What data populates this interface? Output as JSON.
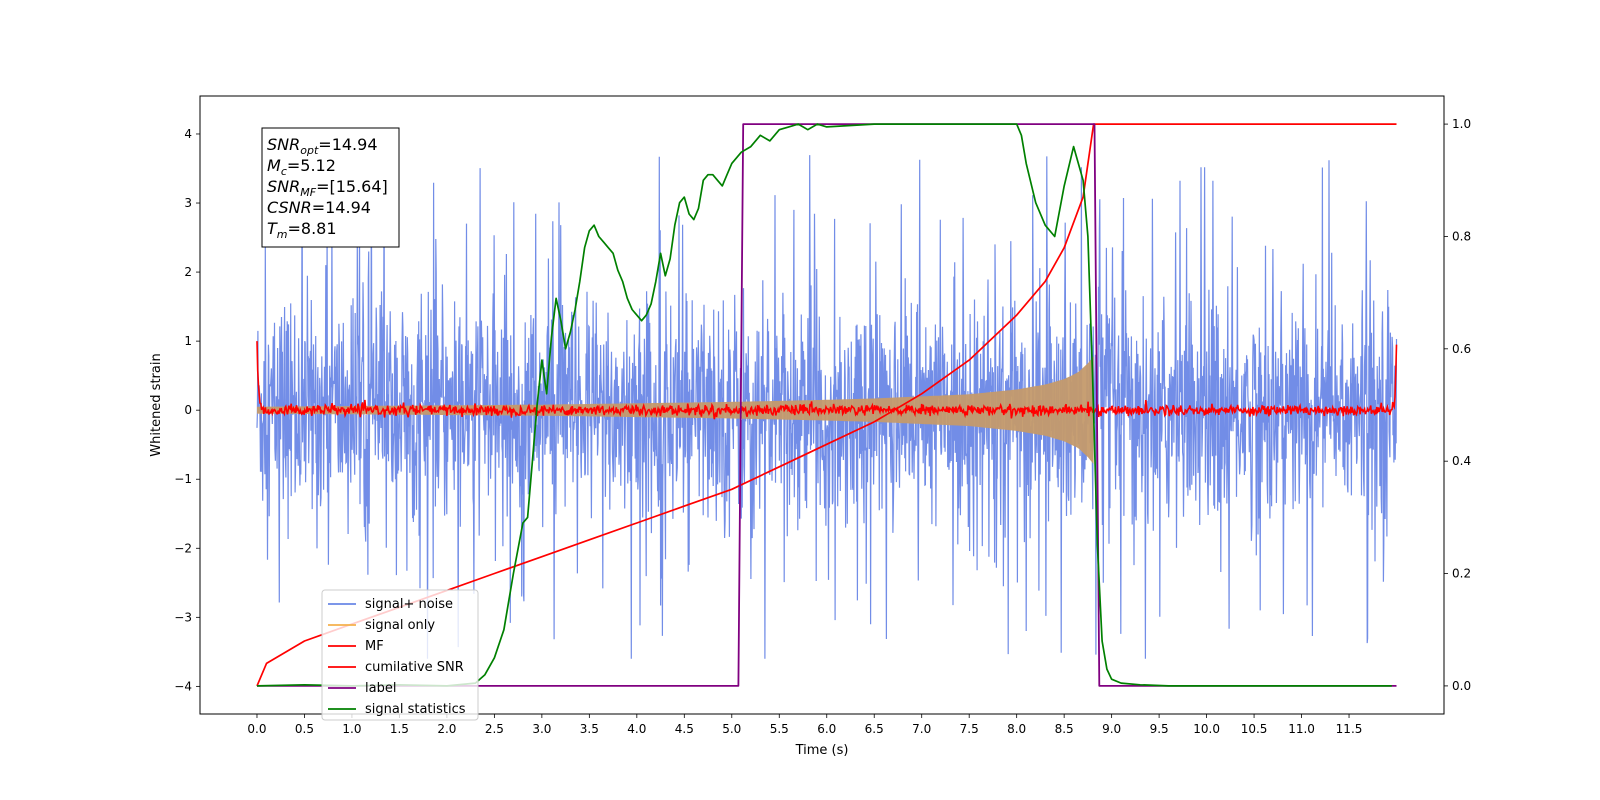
{
  "chart_data": {
    "type": "line",
    "xlabel": "Time (s)",
    "ylabel": "Whitened strain",
    "xlim": [
      -0.6,
      12.5
    ],
    "ylim_left": [
      -4.4,
      4.55
    ],
    "ylim_right": [
      -0.05,
      1.05
    ],
    "x_ticks": [
      0.0,
      0.5,
      1.0,
      1.5,
      2.0,
      2.5,
      3.0,
      3.5,
      4.0,
      4.5,
      5.0,
      5.5,
      6.0,
      6.5,
      7.0,
      7.5,
      8.0,
      8.5,
      9.0,
      9.5,
      10.0,
      10.5,
      11.0,
      11.5
    ],
    "x_tick_labels": [
      "0.0",
      "0.5",
      "1.0",
      "1.5",
      "2.0",
      "2.5",
      "3.0",
      "3.5",
      "4.0",
      "4.5",
      "5.0",
      "5.5",
      "6.0",
      "6.5",
      "7.0",
      "7.5",
      "8.0",
      "8.5",
      "9.0",
      "9.5",
      "10.0",
      "10.5",
      "11.0",
      "11.5"
    ],
    "y_left_ticks": [
      4,
      3,
      2,
      1,
      0,
      -1,
      -2,
      -3,
      -4
    ],
    "y_left_tick_labels": [
      "4",
      "3",
      "2",
      "1",
      "0",
      "−1",
      "−2",
      "−3",
      "−4"
    ],
    "y_right_ticks": [
      1.0,
      0.8,
      0.6,
      0.4,
      0.2,
      0.0
    ],
    "y_right_tick_labels": [
      "1.0",
      "0.8",
      "0.6",
      "0.4",
      "0.2",
      "0.0"
    ],
    "grid": false,
    "legend_position": "lower-left",
    "series": [
      {
        "name": "signal+ noise",
        "axis": "left",
        "color": "#6a87e6",
        "style": "noise band",
        "x_range": [
          0.0,
          12.0
        ],
        "typical_amplitude": 1.5,
        "peak_max": 3.7,
        "peak_min": -3.6
      },
      {
        "name": "signal only",
        "axis": "left",
        "color": "#f5b14c",
        "style": "chirp envelope",
        "x": [
          0.0,
          1.0,
          2.0,
          3.0,
          4.0,
          5.0,
          6.0,
          6.5,
          7.0,
          7.5,
          8.0,
          8.3,
          8.5,
          8.65,
          8.75,
          8.81
        ],
        "envelope": [
          0.05,
          0.06,
          0.07,
          0.08,
          0.1,
          0.12,
          0.15,
          0.17,
          0.2,
          0.23,
          0.3,
          0.37,
          0.45,
          0.55,
          0.68,
          0.78
        ]
      },
      {
        "name": "MF",
        "axis": "left",
        "color": "#ff0000",
        "style": "noisy baseline",
        "x_range": [
          0.0,
          12.0
        ],
        "baseline": 0.0,
        "noise_amplitude": 0.07,
        "start_value": 1.0,
        "end_value": 0.95
      },
      {
        "name": "cumilative SNR",
        "axis": "right",
        "color": "#ff0000",
        "x": [
          0.0,
          0.1,
          0.5,
          1.0,
          1.5,
          2.0,
          2.5,
          3.0,
          3.5,
          4.0,
          4.5,
          5.0,
          5.5,
          6.0,
          6.5,
          7.0,
          7.5,
          8.0,
          8.3,
          8.5,
          8.7,
          8.81,
          12.0
        ],
        "values": [
          0.0,
          0.04,
          0.08,
          0.11,
          0.14,
          0.17,
          0.2,
          0.23,
          0.26,
          0.29,
          0.32,
          0.35,
          0.39,
          0.43,
          0.47,
          0.52,
          0.58,
          0.66,
          0.72,
          0.78,
          0.87,
          1.0,
          1.0
        ]
      },
      {
        "name": "label",
        "axis": "right",
        "color": "#800080",
        "x": [
          0.0,
          5.07,
          5.12,
          8.82,
          8.87,
          12.0
        ],
        "values": [
          0.0,
          0.0,
          1.0,
          1.0,
          0.0,
          0.0
        ]
      },
      {
        "name": "signal statistics",
        "axis": "right",
        "color": "#008000",
        "x": [
          0.0,
          0.5,
          1.0,
          1.5,
          2.0,
          2.3,
          2.4,
          2.5,
          2.6,
          2.7,
          2.8,
          2.85,
          2.9,
          2.95,
          3.0,
          3.05,
          3.1,
          3.15,
          3.2,
          3.25,
          3.3,
          3.35,
          3.4,
          3.45,
          3.5,
          3.55,
          3.6,
          3.65,
          3.7,
          3.75,
          3.8,
          3.85,
          3.9,
          3.95,
          4.0,
          4.05,
          4.1,
          4.15,
          4.2,
          4.25,
          4.3,
          4.35,
          4.4,
          4.45,
          4.5,
          4.55,
          4.6,
          4.65,
          4.7,
          4.75,
          4.8,
          4.85,
          4.9,
          4.95,
          5.0,
          5.1,
          5.2,
          5.3,
          5.4,
          5.5,
          5.6,
          5.7,
          5.8,
          5.9,
          6.0,
          6.5,
          7.0,
          7.5,
          8.0,
          8.05,
          8.1,
          8.2,
          8.3,
          8.4,
          8.5,
          8.6,
          8.7,
          8.75,
          8.8,
          8.85,
          8.9,
          8.95,
          9.0,
          9.1,
          9.3,
          9.6,
          10.0,
          11.0,
          11.95
        ],
        "values": [
          0.0,
          0.002,
          0.0,
          0.002,
          0.0,
          0.005,
          0.02,
          0.05,
          0.1,
          0.2,
          0.29,
          0.3,
          0.4,
          0.5,
          0.58,
          0.52,
          0.62,
          0.69,
          0.65,
          0.6,
          0.63,
          0.67,
          0.72,
          0.78,
          0.81,
          0.82,
          0.8,
          0.79,
          0.78,
          0.77,
          0.74,
          0.72,
          0.69,
          0.67,
          0.66,
          0.65,
          0.66,
          0.68,
          0.72,
          0.77,
          0.73,
          0.76,
          0.82,
          0.86,
          0.87,
          0.84,
          0.83,
          0.85,
          0.9,
          0.91,
          0.91,
          0.9,
          0.89,
          0.91,
          0.93,
          0.95,
          0.96,
          0.98,
          0.97,
          0.99,
          0.995,
          1.0,
          0.99,
          1.0,
          0.995,
          1.0,
          1.0,
          1.0,
          1.0,
          0.98,
          0.93,
          0.86,
          0.82,
          0.8,
          0.89,
          0.96,
          0.9,
          0.8,
          0.55,
          0.25,
          0.08,
          0.03,
          0.012,
          0.005,
          0.002,
          0.0,
          0.0,
          0.0,
          0.0
        ]
      }
    ],
    "annotation": {
      "lines": [
        {
          "base": "SNR",
          "sub": "opt",
          "value": "=14.94"
        },
        {
          "base": "M",
          "sub": "c",
          "value": "=5.12"
        },
        {
          "base": "SNR",
          "sub": "MF",
          "value": "=[15.64]"
        },
        {
          "base": "CSNR",
          "sub": "",
          "value": "=14.94"
        },
        {
          "base": "T",
          "sub": "m",
          "value": "=8.81"
        }
      ]
    }
  }
}
